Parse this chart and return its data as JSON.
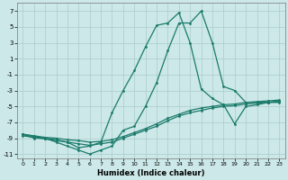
{
  "xlabel": "Humidex (Indice chaleur)",
  "bg_color": "#cce8e8",
  "grid_color": "#aacccc",
  "line_color": "#1a7a6a",
  "xlim": [
    -0.5,
    23.5
  ],
  "ylim": [
    -11.5,
    8.0
  ],
  "yticks": [
    -11,
    -9,
    -7,
    -5,
    -3,
    -1,
    1,
    3,
    5,
    7
  ],
  "xticks": [
    0,
    1,
    2,
    3,
    4,
    5,
    6,
    7,
    8,
    9,
    10,
    11,
    12,
    13,
    14,
    15,
    16,
    17,
    18,
    19,
    20,
    21,
    22,
    23
  ],
  "line1_x": [
    0,
    1,
    2,
    3,
    4,
    5,
    6,
    7,
    8,
    9,
    10,
    11,
    12,
    13,
    14,
    15,
    16,
    17,
    18,
    19,
    20,
    21,
    22,
    23
  ],
  "line1_y": [
    -8.5,
    -8.8,
    -9.0,
    -9.5,
    -10.0,
    -10.5,
    -11.0,
    -10.5,
    -10.0,
    -8.0,
    -7.5,
    -5.0,
    -2.0,
    2.0,
    5.5,
    5.5,
    7.0,
    3.0,
    -2.5,
    -3.0,
    -4.5,
    -4.5,
    -4.5,
    -4.5
  ],
  "line2_x": [
    0,
    1,
    2,
    3,
    4,
    5,
    6,
    7,
    8,
    9,
    10,
    11,
    12,
    13,
    14,
    15,
    16,
    17,
    18,
    19,
    20,
    21,
    22,
    23
  ],
  "line2_y": [
    -8.5,
    -9.0,
    -9.0,
    -9.2,
    -9.5,
    -10.2,
    -10.0,
    -9.5,
    -5.8,
    -3.0,
    -0.5,
    2.5,
    5.2,
    5.5,
    6.8,
    3.0,
    -2.8,
    -4.0,
    -4.8,
    -7.2,
    -5.0,
    -4.8,
    -4.5,
    -4.3
  ],
  "line3_x": [
    0,
    1,
    2,
    3,
    4,
    5,
    6,
    7,
    8,
    9,
    10,
    11,
    12,
    13,
    14,
    15,
    16,
    17,
    18,
    19,
    20,
    21,
    22,
    23
  ],
  "line3_y": [
    -8.5,
    -8.7,
    -8.9,
    -9.0,
    -9.2,
    -9.3,
    -9.5,
    -9.4,
    -9.2,
    -8.8,
    -8.3,
    -7.8,
    -7.2,
    -6.5,
    -6.0,
    -5.5,
    -5.2,
    -5.0,
    -4.8,
    -4.7,
    -4.5,
    -4.4,
    -4.3,
    -4.2
  ],
  "line4_x": [
    0,
    1,
    2,
    3,
    4,
    5,
    6,
    7,
    8,
    9,
    10,
    11,
    12,
    13,
    14,
    15,
    16,
    17,
    18,
    19,
    20,
    21,
    22,
    23
  ],
  "line4_y": [
    -8.7,
    -8.9,
    -9.1,
    -9.3,
    -9.5,
    -9.7,
    -9.9,
    -9.7,
    -9.5,
    -9.0,
    -8.5,
    -8.0,
    -7.5,
    -6.8,
    -6.2,
    -5.8,
    -5.5,
    -5.2,
    -5.0,
    -4.9,
    -4.7,
    -4.6,
    -4.5,
    -4.4
  ]
}
